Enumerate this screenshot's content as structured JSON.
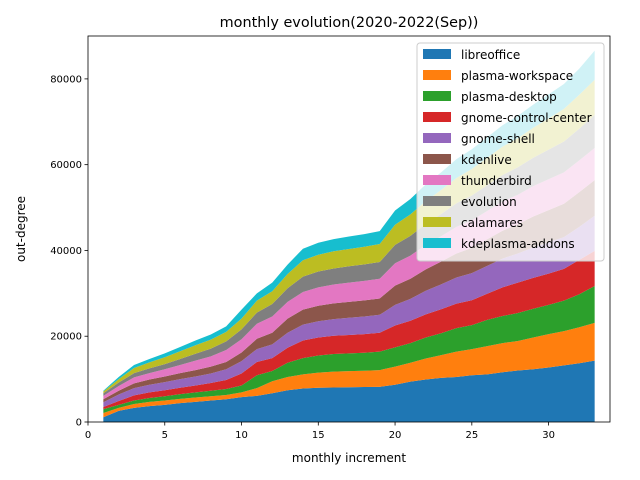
{
  "chart_data": {
    "type": "area",
    "stacked": true,
    "title": "monthly evolution(2020-2022(Sep))",
    "xlabel": "monthly increment",
    "ylabel": "out-degree",
    "xlim": [
      0,
      34
    ],
    "ylim": [
      0,
      90000
    ],
    "xticks": [
      0,
      5,
      10,
      15,
      20,
      25,
      30
    ],
    "yticks": [
      0,
      20000,
      40000,
      60000,
      80000
    ],
    "legend_position": "upper-right",
    "x": [
      1,
      2,
      3,
      4,
      5,
      6,
      7,
      8,
      9,
      10,
      11,
      12,
      13,
      14,
      15,
      16,
      17,
      18,
      19,
      20,
      21,
      22,
      23,
      24,
      25,
      26,
      27,
      28,
      29,
      30,
      31,
      32,
      33
    ],
    "series": [
      {
        "name": "libreoffice",
        "color": "#1f77b4",
        "values": [
          1100,
          2600,
          3300,
          3700,
          4000,
          4400,
          4700,
          5000,
          5300,
          5800,
          6100,
          6700,
          7400,
          7800,
          8000,
          8050,
          8100,
          8150,
          8200,
          8700,
          9400,
          9900,
          10300,
          10500,
          10900,
          11100,
          11600,
          12000,
          12300,
          12700,
          13200,
          13700,
          14300
        ]
      },
      {
        "name": "plasma-workspace",
        "color": "#ff7f0e",
        "values": [
          1000,
          700,
          900,
          1000,
          1000,
          1000,
          1000,
          1000,
          1000,
          1100,
          1800,
          2800,
          3100,
          3300,
          3500,
          3700,
          3750,
          3800,
          3900,
          4200,
          4400,
          4900,
          5300,
          5900,
          6100,
          6600,
          6800,
          6900,
          7400,
          7800,
          8000,
          8400,
          8800
        ]
      },
      {
        "name": "plasma-desktop",
        "color": "#2ca02c",
        "values": [
          900,
          700,
          800,
          900,
          1000,
          1100,
          1200,
          1300,
          1400,
          1600,
          3000,
          2400,
          3300,
          3800,
          4000,
          4100,
          4150,
          4200,
          4300,
          4500,
          4600,
          4900,
          5100,
          5500,
          5600,
          6100,
          6300,
          6500,
          6700,
          6800,
          7100,
          7700,
          8600
        ]
      },
      {
        "name": "gnome-control-center",
        "color": "#d62728",
        "values": [
          500,
          900,
          1200,
          1300,
          1400,
          1500,
          1600,
          1800,
          2100,
          2800,
          3100,
          3000,
          3500,
          4100,
          4200,
          4250,
          4300,
          4350,
          4400,
          5100,
          5200,
          5400,
          5600,
          5700,
          5800,
          6100,
          6700,
          7100,
          7200,
          7300,
          7400,
          8000,
          8200
        ]
      },
      {
        "name": "gnome-shell",
        "color": "#9467bd",
        "values": [
          1100,
          1500,
          1700,
          1800,
          1900,
          2000,
          2100,
          2200,
          2500,
          2900,
          3000,
          3200,
          3500,
          3700,
          3800,
          3900,
          4000,
          4100,
          4200,
          4800,
          5100,
          5500,
          5800,
          6100,
          6300,
          6500,
          6700,
          6800,
          7100,
          7300,
          7400,
          7700,
          8200
        ]
      },
      {
        "name": "kdenlive",
        "color": "#8c564b",
        "values": [
          700,
          900,
          1100,
          1200,
          1300,
          1400,
          1500,
          1600,
          1700,
          2000,
          2400,
          2700,
          3300,
          3500,
          3600,
          3650,
          3700,
          3750,
          3800,
          4500,
          4700,
          5000,
          5300,
          5600,
          5900,
          6200,
          6500,
          6800,
          7200,
          7500,
          7800,
          8100,
          8300
        ]
      },
      {
        "name": "thunderbird",
        "color": "#e377c2",
        "values": [
          800,
          1100,
          1400,
          1500,
          1700,
          1900,
          2200,
          2400,
          2800,
          3100,
          3500,
          3800,
          3900,
          4100,
          4300,
          4400,
          4500,
          4550,
          4600,
          5200,
          5400,
          5700,
          5900,
          6200,
          6400,
          6600,
          6800,
          6900,
          7100,
          7200,
          7300,
          7400,
          7500
        ]
      },
      {
        "name": "evolution",
        "color": "#7f7f7f",
        "values": [
          600,
          800,
          1000,
          1100,
          1200,
          1400,
          1600,
          1800,
          2000,
          2300,
          2600,
          2900,
          3200,
          3600,
          3700,
          3750,
          3800,
          3850,
          3900,
          4300,
          4600,
          4900,
          5200,
          5500,
          5800,
          6000,
          6200,
          6400,
          6600,
          6900,
          7200,
          7400,
          7700
        ]
      },
      {
        "name": "calamares",
        "color": "#bcbd22",
        "values": [
          400,
          800,
          1200,
          1400,
          1600,
          1800,
          2000,
          2100,
          2200,
          2500,
          2800,
          3000,
          3300,
          3800,
          3900,
          4000,
          4050,
          4100,
          4200,
          4700,
          5000,
          5300,
          5600,
          5900,
          6200,
          6400,
          6600,
          6800,
          7000,
          7300,
          7600,
          7900,
          8200
        ]
      },
      {
        "name": "kdeplasma-addons",
        "color": "#17becf",
        "values": [
          200,
          500,
          700,
          800,
          900,
          1000,
          1100,
          1200,
          1300,
          2100,
          1700,
          2000,
          2200,
          2700,
          2800,
          2850,
          2900,
          2950,
          3000,
          3300,
          3600,
          3900,
          4100,
          4400,
          4600,
          4800,
          5000,
          5200,
          5400,
          5600,
          5800,
          6100,
          6800
        ]
      }
    ]
  }
}
